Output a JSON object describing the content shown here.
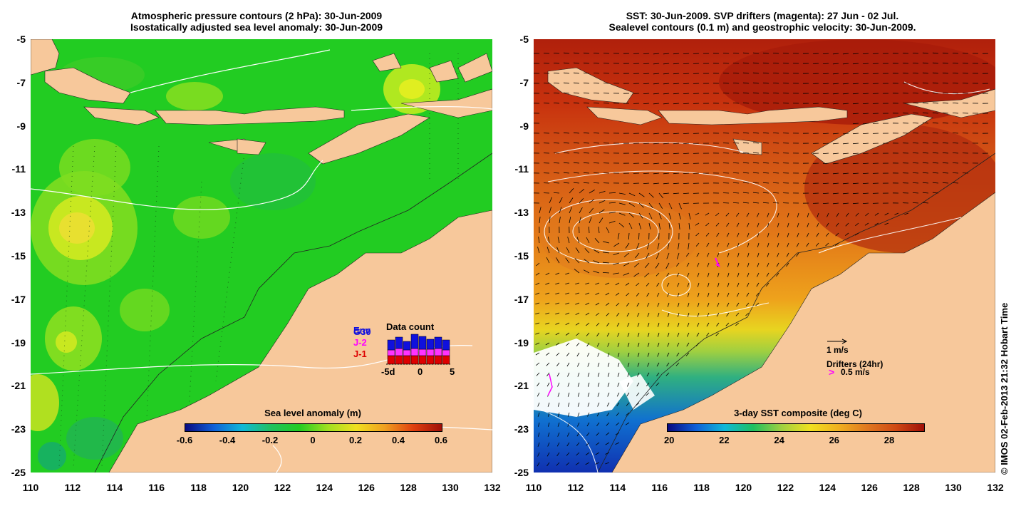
{
  "left_panel": {
    "title_line1": "Atmospheric pressure contours (2 hPa): 30-Jun-2009",
    "title_line2": "Isostatically adjusted sea level anomaly: 30-Jun-2009",
    "colorbar": {
      "title": "Sea level anomaly (m)",
      "labels": [
        "-0.6",
        "-0.4",
        "-0.2",
        "0",
        "0.2",
        "0.4",
        "0.6"
      ]
    },
    "data_count": {
      "title": "Data count",
      "legend": [
        "Env",
        "G30",
        "J-2",
        "J-1"
      ],
      "axis_labels": [
        "-5d",
        "0",
        "5"
      ]
    }
  },
  "right_panel": {
    "title_line1": "SST: 30-Jun-2009. SVP drifters (magenta): 27 Jun - 02 Jul.",
    "title_line2": "Sealevel contours (0.1 m) and geostrophic velocity: 30-Jun-2009.",
    "colorbar": {
      "title": "3-day SST composite (deg C)",
      "labels": [
        "20",
        "22",
        "24",
        "26",
        "28"
      ]
    },
    "velocity_scale": "1 m/s",
    "drifters_label": "Drifters (24hr)",
    "drifter_scale": "0.5 m/s"
  },
  "axes": {
    "x_labels": [
      "110",
      "112",
      "114",
      "116",
      "118",
      "120",
      "122",
      "124",
      "126",
      "128",
      "130",
      "132"
    ],
    "y_labels": [
      "-5",
      "-7",
      "-9",
      "-11",
      "-13",
      "-15",
      "-17",
      "-19",
      "-21",
      "-23",
      "-25"
    ]
  },
  "credit": "© IMOS 02-Feb-2013 21:32 Hobart Time",
  "colors": {
    "land": "#f7c89b",
    "sla_background": "#22cc22",
    "sst_warm": "#c23010",
    "sst_mid": "#e88418",
    "sst_cool": "#e8d820"
  }
}
